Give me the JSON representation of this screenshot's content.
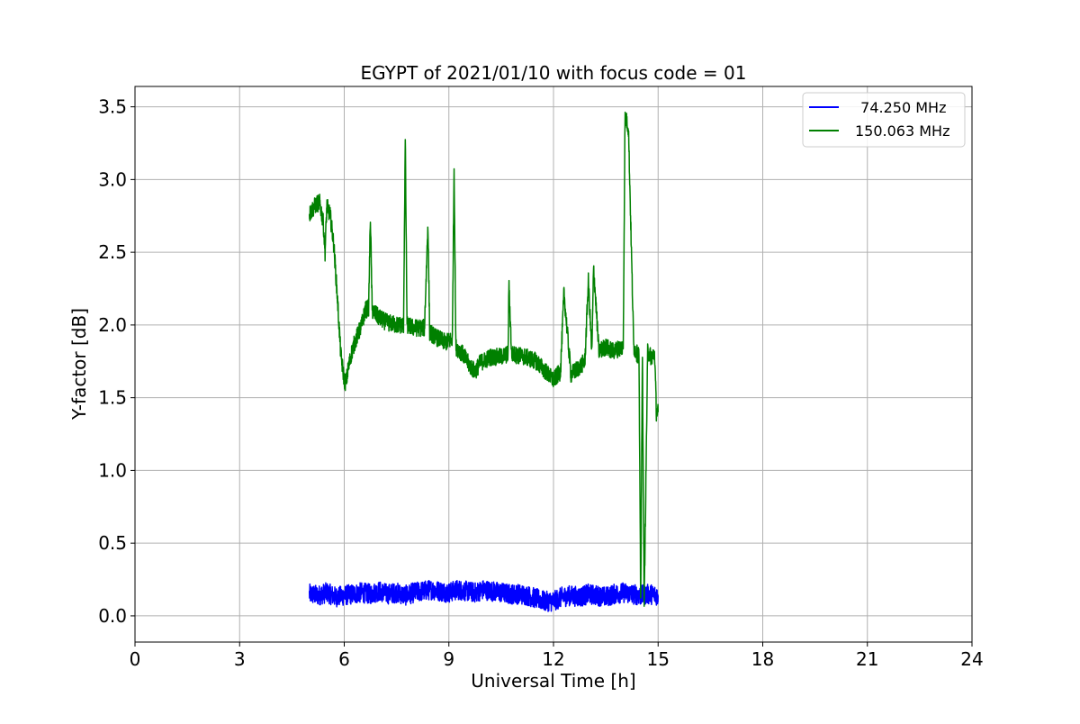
{
  "chart_data": {
    "type": "line",
    "title": "EGYPT of 2021/01/10 with focus code = 01",
    "xlabel": "Universal Time [h]",
    "ylabel": "Y-factor [dB]",
    "xlim": [
      0,
      24
    ],
    "ylim": [
      -0.18,
      3.64
    ],
    "xticks": [
      0,
      3,
      6,
      9,
      12,
      15,
      18,
      21,
      24
    ],
    "xtick_labels": [
      "0",
      "3",
      "6",
      "9",
      "12",
      "15",
      "18",
      "21",
      "24"
    ],
    "yticks": [
      0.0,
      0.5,
      1.0,
      1.5,
      2.0,
      2.5,
      3.0,
      3.5
    ],
    "ytick_labels": [
      "0.0",
      "0.5",
      "1.0",
      "1.5",
      "2.0",
      "2.5",
      "3.0",
      "3.5"
    ],
    "grid": true,
    "legend_position": "top-right",
    "series": [
      {
        "name": "  74.250 MHz",
        "color": "#0000ff",
        "x": [
          5.0,
          5.25,
          5.5,
          5.75,
          6.0,
          6.25,
          6.5,
          6.75,
          7.0,
          7.25,
          7.5,
          7.75,
          8.0,
          8.25,
          8.5,
          8.75,
          9.0,
          9.25,
          9.5,
          9.75,
          10.0,
          10.25,
          10.5,
          10.75,
          11.0,
          11.25,
          11.5,
          11.75,
          12.0,
          12.25,
          12.5,
          12.75,
          13.0,
          13.25,
          13.5,
          13.75,
          14.0,
          14.25,
          14.5,
          14.75,
          15.0
        ],
        "y": [
          0.15,
          0.14,
          0.16,
          0.13,
          0.14,
          0.15,
          0.16,
          0.15,
          0.17,
          0.15,
          0.16,
          0.14,
          0.16,
          0.17,
          0.18,
          0.17,
          0.16,
          0.18,
          0.17,
          0.16,
          0.18,
          0.17,
          0.16,
          0.15,
          0.15,
          0.14,
          0.12,
          0.1,
          0.1,
          0.13,
          0.14,
          0.13,
          0.15,
          0.14,
          0.13,
          0.15,
          0.16,
          0.15,
          0.14,
          0.15,
          0.14
        ],
        "noise": 0.07
      },
      {
        "name": "150.063 MHz",
        "color": "#008000",
        "x": [
          5.0,
          5.1,
          5.2,
          5.3,
          5.4,
          5.45,
          5.5,
          5.6,
          5.7,
          5.8,
          5.9,
          6.0,
          6.05,
          6.1,
          6.2,
          6.3,
          6.5,
          6.6,
          6.7,
          6.75,
          6.8,
          7.0,
          7.2,
          7.5,
          7.7,
          7.75,
          7.8,
          8.0,
          8.3,
          8.4,
          8.45,
          8.6,
          8.9,
          9.1,
          9.15,
          9.2,
          9.4,
          9.6,
          9.75,
          9.9,
          10.2,
          10.5,
          10.7,
          10.72,
          10.8,
          11.2,
          11.5,
          11.7,
          12.0,
          12.2,
          12.3,
          12.5,
          12.7,
          12.9,
          13.0,
          13.1,
          13.15,
          13.3,
          13.5,
          13.7,
          13.9,
          14.0,
          14.05,
          14.1,
          14.15,
          14.2,
          14.3,
          14.4,
          14.45,
          14.5,
          14.55,
          14.6,
          14.7,
          14.8,
          14.9,
          14.95,
          15.0
        ],
        "y": [
          2.76,
          2.8,
          2.83,
          2.84,
          2.7,
          2.5,
          2.82,
          2.75,
          2.55,
          2.2,
          1.8,
          1.62,
          1.6,
          1.68,
          1.8,
          1.88,
          2.0,
          2.1,
          2.12,
          2.75,
          2.1,
          2.05,
          2.02,
          2.0,
          2.0,
          3.28,
          2.0,
          1.98,
          1.98,
          2.7,
          1.95,
          1.92,
          1.88,
          1.9,
          3.1,
          1.85,
          1.8,
          1.72,
          1.68,
          1.74,
          1.78,
          1.78,
          1.8,
          2.28,
          1.8,
          1.78,
          1.75,
          1.7,
          1.62,
          1.68,
          2.22,
          1.66,
          1.7,
          1.75,
          2.3,
          1.8,
          2.4,
          1.82,
          1.85,
          1.82,
          1.84,
          1.85,
          3.42,
          3.4,
          3.35,
          2.85,
          1.85,
          1.8,
          1.8,
          0.1,
          1.8,
          0.05,
          1.82,
          1.78,
          1.8,
          1.4,
          1.4
        ],
        "noise": 0.06
      }
    ]
  }
}
